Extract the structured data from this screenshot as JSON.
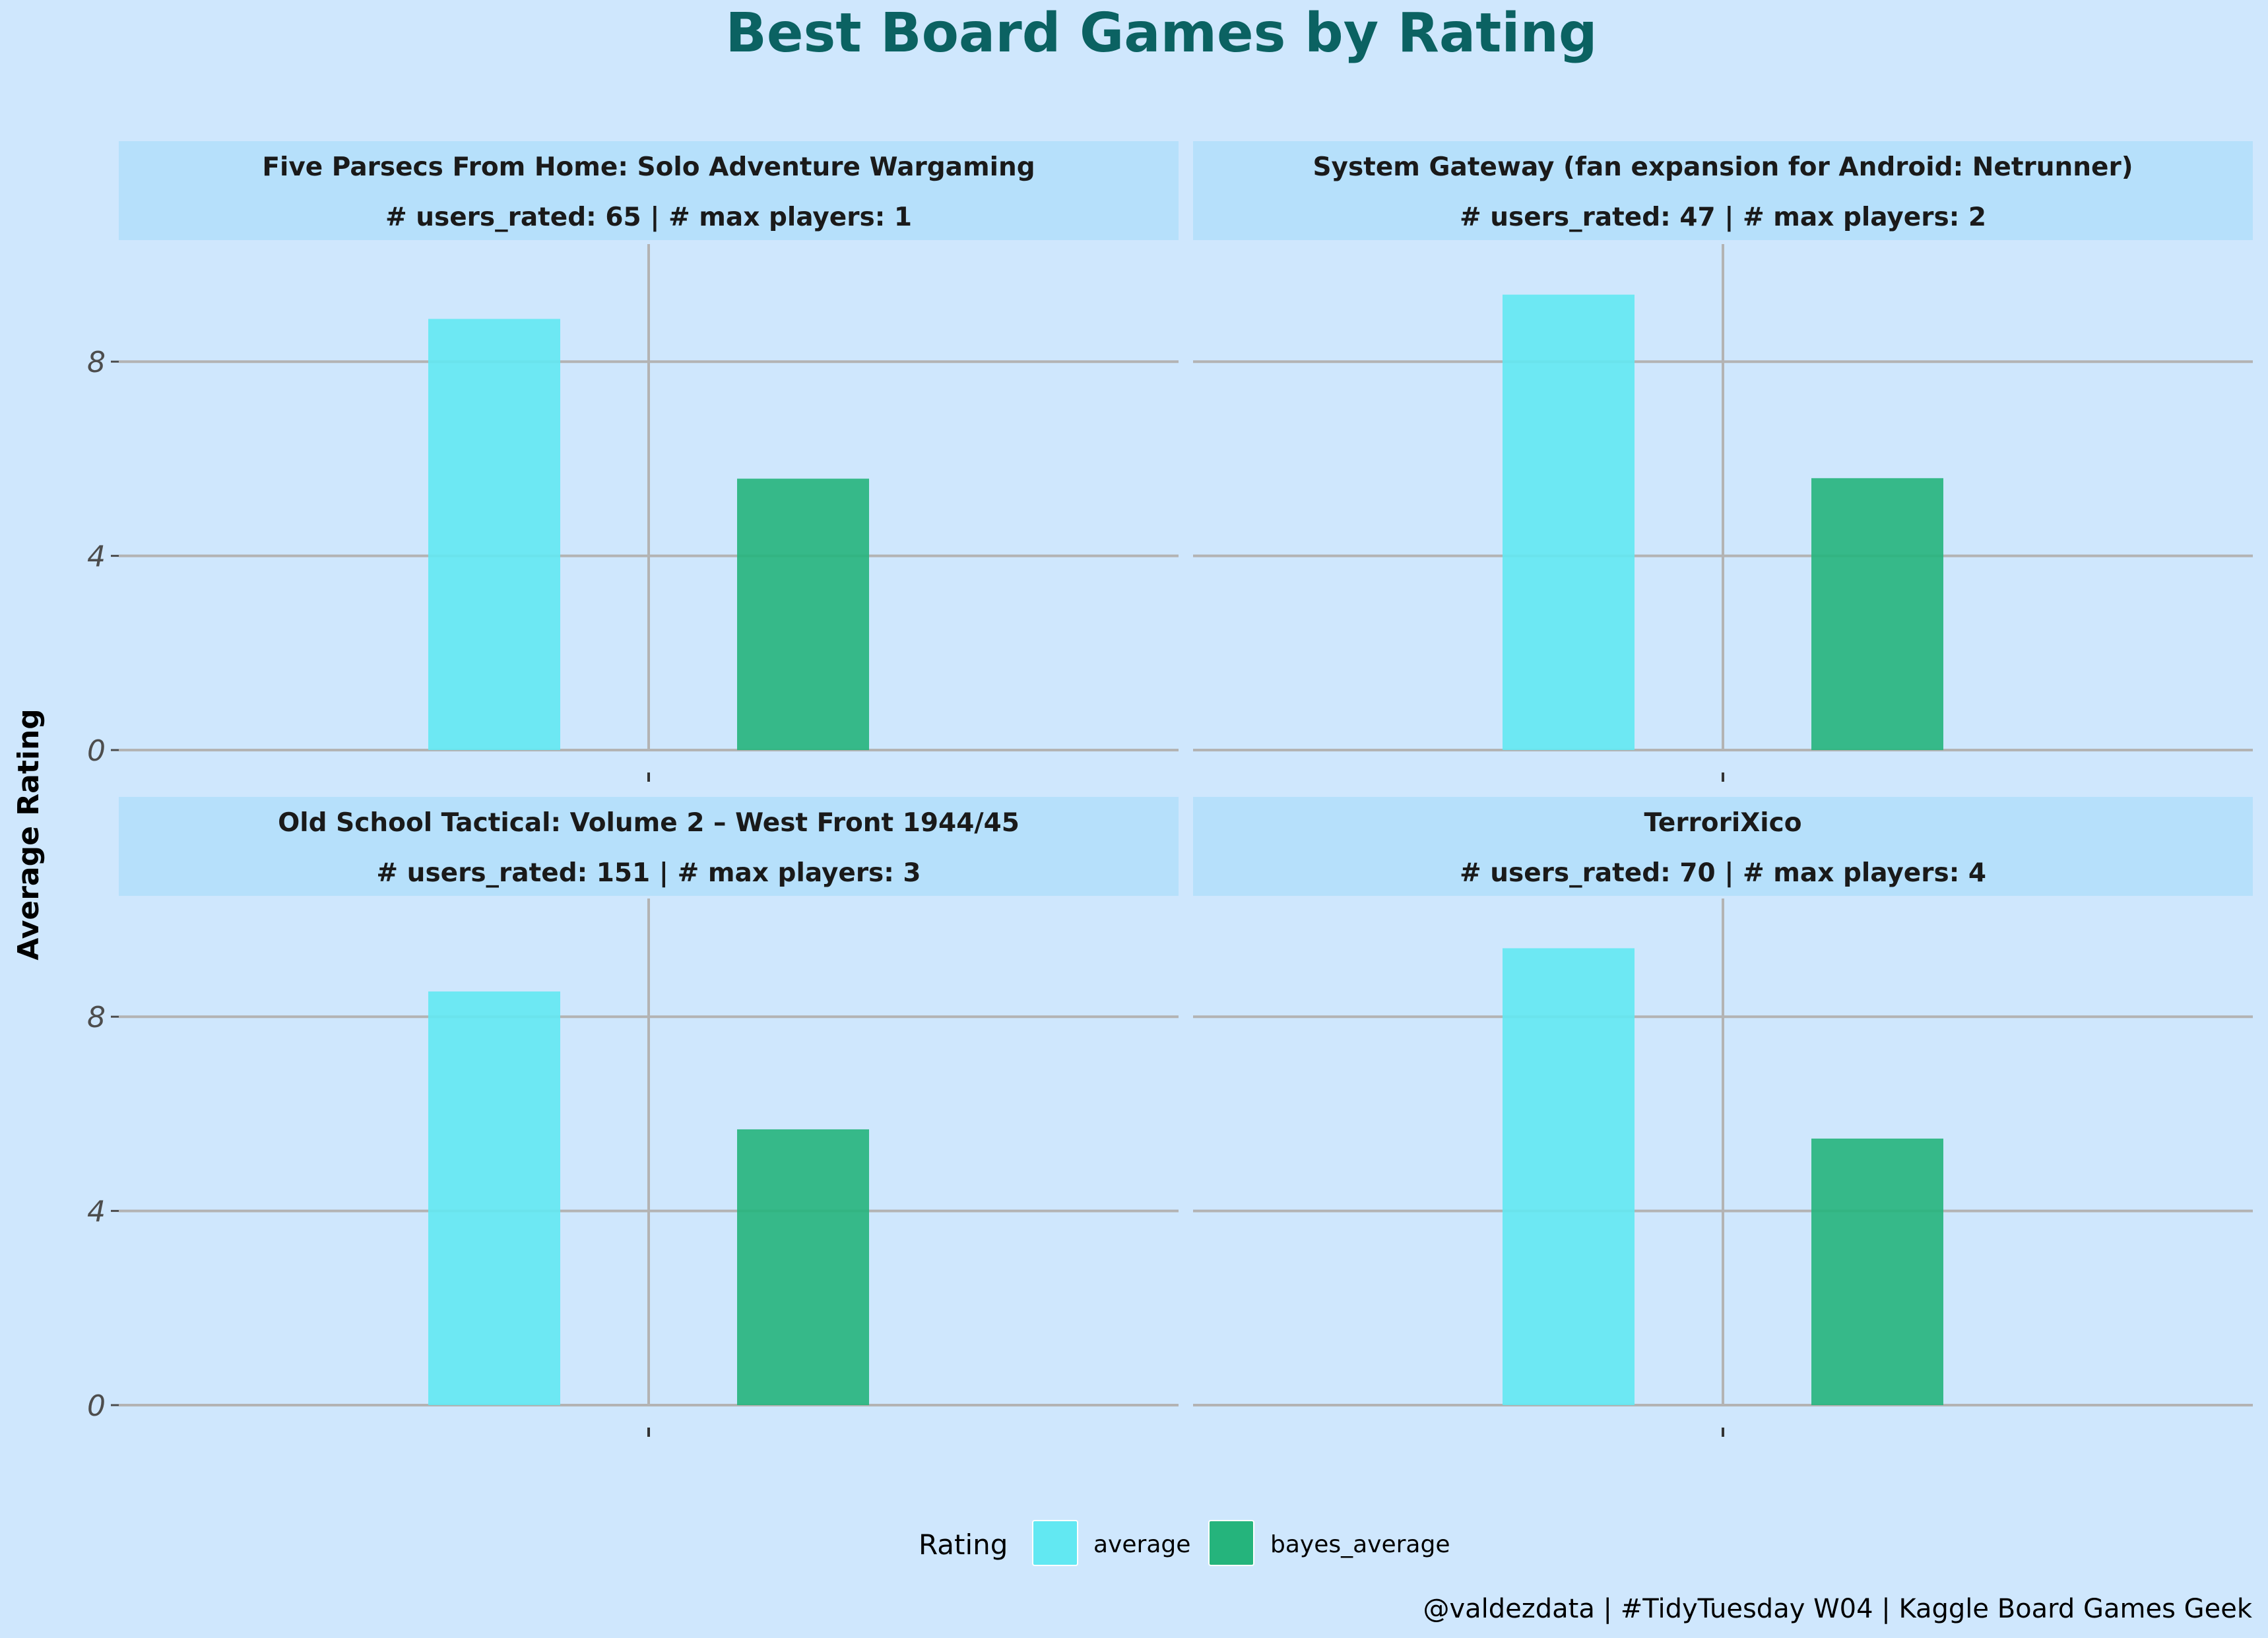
{
  "chart_data": {
    "type": "bar",
    "title": "Best Board Games by Rating",
    "ylabel": "Average Rating",
    "xlabel": "",
    "ylim": [
      0,
      10.5
    ],
    "y_ticks": [
      "0",
      "4",
      "8"
    ],
    "y_tick_values": [
      0,
      4,
      8
    ],
    "legend": {
      "title": "Rating",
      "placement": "bottom",
      "entries": [
        {
          "label": "average",
          "color": "#62e8f2"
        },
        {
          "label": "bayes_average",
          "color": "#25b47c"
        }
      ]
    },
    "series_names": [
      "average",
      "bayes_average"
    ],
    "series_colors": [
      "#62e8f2",
      "#25b47c"
    ],
    "panels": [
      {
        "title": "Five Parsecs From Home: Solo Adventure Wargaming",
        "subtitle": "# users_rated: 65 | # max players: 1",
        "values": [
          8.88,
          5.59
        ]
      },
      {
        "title": "System Gateway (fan expansion for Android: Netrunner)",
        "subtitle": "# users_rated: 47 | # max players: 2",
        "values": [
          9.38,
          5.6
        ]
      },
      {
        "title": "Old School Tactical: Volume 2 – West Front 1944/45",
        "subtitle": "# users_rated: 151 | # max players: 3",
        "values": [
          8.52,
          5.68
        ]
      },
      {
        "title": "TerroriXico",
        "subtitle": "# users_rated: 70 | # max players: 4",
        "values": [
          9.41,
          5.49
        ]
      }
    ],
    "caption": "@valdezdata | #TidyTuesday W04 | Kaggle Board Games Geek",
    "grid": true
  }
}
